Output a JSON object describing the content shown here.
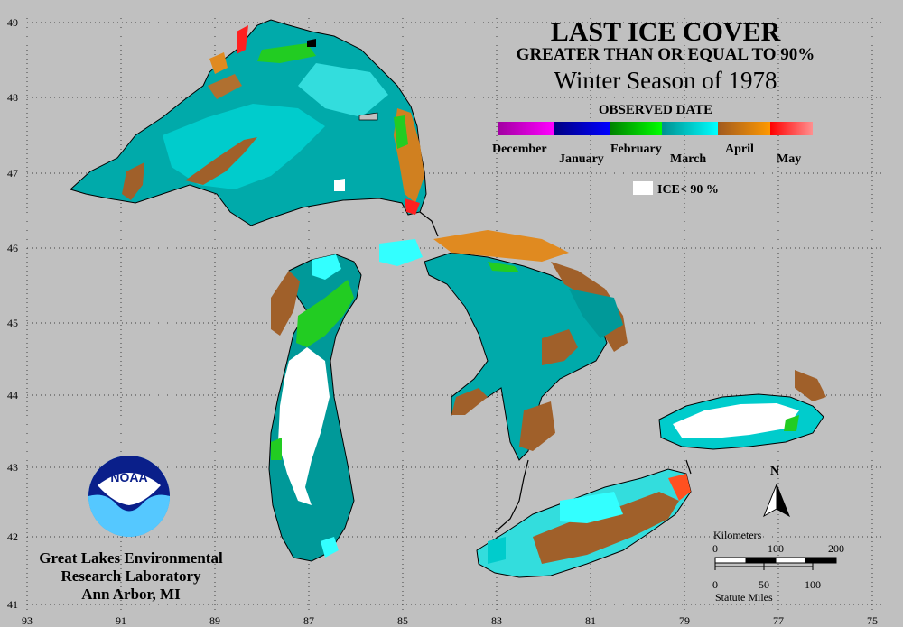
{
  "title": {
    "line1": "LAST ICE COVER",
    "line2": "GREATER THAN OR EQUAL TO 90%",
    "line3": "Winter Season of 1978"
  },
  "legend": {
    "heading": "OBSERVED DATE",
    "months": [
      {
        "label": "December",
        "c1": "#a000a0",
        "c2": "#ff00ff"
      },
      {
        "label": "January",
        "c1": "#000080",
        "c2": "#0000ff"
      },
      {
        "label": "February",
        "c1": "#008000",
        "c2": "#00ff00"
      },
      {
        "label": "March",
        "c1": "#009090",
        "c2": "#00ffff"
      },
      {
        "label": "April",
        "c1": "#a05a20",
        "c2": "#ff9900"
      },
      {
        "label": "May",
        "c1": "#ff0000",
        "c2": "#ff9090"
      }
    ],
    "ice_label": "ICE< 90 %"
  },
  "axes": {
    "lat_labels": [
      "49",
      "48",
      "47",
      "46",
      "45",
      "44",
      "43",
      "42",
      "41"
    ],
    "lon_labels": [
      "93",
      "91",
      "89",
      "87",
      "85",
      "83",
      "81",
      "79",
      "77",
      "75"
    ]
  },
  "north_arrow": {
    "label": "N"
  },
  "scale": {
    "km_title": "Kilometers",
    "km_ticks": [
      "0",
      "100",
      "200"
    ],
    "mi_ticks": [
      "0",
      "50",
      "100"
    ],
    "mi_title": "Statute Miles"
  },
  "logo": {
    "text": "NOAA"
  },
  "credit": {
    "line1": "Great Lakes Environmental",
    "line2": "Research Laboratory",
    "line3": "Ann Arbor, MI"
  },
  "colors": {
    "background": "#c0c0c0",
    "march_dark": "#009999",
    "march_light": "#00cccc",
    "march_cyan": "#33ffff",
    "april_brown": "#b06a28",
    "april_orange": "#e08a20",
    "february_green": "#22cc22",
    "may_red": "#ff2020",
    "ice_white": "#ffffff"
  }
}
